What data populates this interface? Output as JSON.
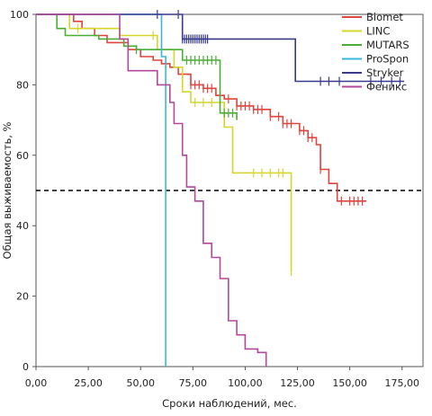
{
  "chart_data": {
    "type": "line",
    "xlabel": "Сроки наблюдений, мес.",
    "ylabel": "Общая выживаемость, %",
    "xlim": [
      0,
      185
    ],
    "ylim": [
      0,
      100
    ],
    "xticks": [
      "0,00",
      "25,00",
      "50,00",
      "75,00",
      "100,00",
      "125,00",
      "150,00",
      "175,00"
    ],
    "xtick_values": [
      0,
      25,
      50,
      75,
      100,
      125,
      150,
      175
    ],
    "yticks": [
      "0",
      "20",
      "40",
      "60",
      "80",
      "100"
    ],
    "ytick_values": [
      0,
      20,
      40,
      60,
      80,
      100
    ],
    "reference_line": {
      "y": 50,
      "style": "dashed",
      "color": "#000000"
    },
    "legend_position": "top-right",
    "series": [
      {
        "name": "Biomet",
        "color": "#e0443e",
        "points": [
          [
            0,
            100
          ],
          [
            18,
            100
          ],
          [
            18,
            98
          ],
          [
            22,
            98
          ],
          [
            22,
            96
          ],
          [
            28,
            96
          ],
          [
            28,
            94
          ],
          [
            34,
            94
          ],
          [
            34,
            92
          ],
          [
            44,
            92
          ],
          [
            44,
            90
          ],
          [
            50,
            90
          ],
          [
            50,
            88
          ],
          [
            56,
            88
          ],
          [
            56,
            87
          ],
          [
            60,
            87
          ],
          [
            60,
            86
          ],
          [
            64,
            86
          ],
          [
            64,
            85
          ],
          [
            68,
            85
          ],
          [
            68,
            83
          ],
          [
            74,
            83
          ],
          [
            74,
            80
          ],
          [
            80,
            80
          ],
          [
            80,
            79
          ],
          [
            86,
            79
          ],
          [
            86,
            77
          ],
          [
            90,
            77
          ],
          [
            90,
            76
          ],
          [
            96,
            76
          ],
          [
            96,
            74
          ],
          [
            104,
            74
          ],
          [
            104,
            73
          ],
          [
            112,
            73
          ],
          [
            112,
            71
          ],
          [
            118,
            71
          ],
          [
            118,
            69
          ],
          [
            126,
            69
          ],
          [
            126,
            67
          ],
          [
            130,
            67
          ],
          [
            130,
            65
          ],
          [
            134,
            65
          ],
          [
            134,
            63
          ],
          [
            136,
            63
          ],
          [
            136,
            56
          ],
          [
            140,
            56
          ],
          [
            140,
            52
          ],
          [
            144,
            52
          ],
          [
            144,
            47
          ],
          [
            158,
            47
          ]
        ],
        "censor": [
          62,
          70,
          74,
          76,
          78,
          80,
          82,
          84,
          88,
          92,
          96,
          98,
          100,
          102,
          104,
          106,
          108,
          112,
          116,
          118,
          120,
          122,
          126,
          128,
          130,
          132,
          136,
          146,
          150,
          152,
          154,
          156
        ]
      },
      {
        "name": "LINC",
        "color": "#d6d62e",
        "points": [
          [
            0,
            100
          ],
          [
            16,
            100
          ],
          [
            16,
            96
          ],
          [
            40,
            96
          ],
          [
            40,
            94
          ],
          [
            58,
            94
          ],
          [
            58,
            90
          ],
          [
            66,
            90
          ],
          [
            66,
            85
          ],
          [
            70,
            85
          ],
          [
            70,
            78
          ],
          [
            74,
            78
          ],
          [
            74,
            75
          ],
          [
            90,
            75
          ],
          [
            90,
            68
          ],
          [
            94,
            68
          ],
          [
            94,
            55
          ],
          [
            120,
            55
          ],
          [
            122,
            55
          ],
          [
            122,
            27
          ]
        ],
        "censor": [
          20,
          56,
          60,
          76,
          80,
          84,
          88,
          104,
          108,
          112,
          116,
          118,
          122
        ]
      },
      {
        "name": "MUTARS",
        "color": "#4aae36",
        "points": [
          [
            0,
            100
          ],
          [
            10,
            100
          ],
          [
            10,
            96
          ],
          [
            14,
            96
          ],
          [
            14,
            94
          ],
          [
            30,
            94
          ],
          [
            30,
            93
          ],
          [
            42,
            93
          ],
          [
            42,
            91
          ],
          [
            48,
            91
          ],
          [
            48,
            90
          ],
          [
            70,
            90
          ],
          [
            70,
            87
          ],
          [
            88,
            87
          ],
          [
            88,
            72
          ],
          [
            96,
            72
          ],
          [
            96,
            70
          ]
        ],
        "censor": [
          48,
          72,
          74,
          76,
          78,
          80,
          82,
          84,
          86,
          90,
          92,
          94
        ]
      },
      {
        "name": "ProSpon",
        "color": "#38b8d8",
        "points": [
          [
            0,
            100
          ],
          [
            60,
            100
          ],
          [
            60,
            88
          ],
          [
            62,
            88
          ],
          [
            62,
            0
          ]
        ],
        "censor": []
      },
      {
        "name": "Stryker",
        "color": "#3a3a8a",
        "points": [
          [
            0,
            100
          ],
          [
            70,
            100
          ],
          [
            70,
            93
          ],
          [
            124,
            93
          ],
          [
            124,
            81
          ],
          [
            176,
            81
          ]
        ],
        "censor": [
          58,
          68,
          70,
          71,
          72,
          73,
          74,
          75,
          76,
          77,
          78,
          79,
          80,
          81,
          82,
          136,
          140,
          145,
          160,
          165,
          170,
          174
        ]
      },
      {
        "name": "Феникс",
        "color": "#b4489a",
        "points": [
          [
            0,
            100
          ],
          [
            40,
            100
          ],
          [
            40,
            93
          ],
          [
            44,
            93
          ],
          [
            44,
            84
          ],
          [
            58,
            84
          ],
          [
            58,
            80
          ],
          [
            64,
            80
          ],
          [
            64,
            75
          ],
          [
            66,
            75
          ],
          [
            66,
            69
          ],
          [
            70,
            69
          ],
          [
            70,
            60
          ],
          [
            72,
            60
          ],
          [
            72,
            51
          ],
          [
            76,
            51
          ],
          [
            76,
            47
          ],
          [
            80,
            47
          ],
          [
            80,
            35
          ],
          [
            84,
            35
          ],
          [
            84,
            31
          ],
          [
            88,
            31
          ],
          [
            88,
            25
          ],
          [
            92,
            25
          ],
          [
            92,
            13
          ],
          [
            96,
            13
          ],
          [
            96,
            9
          ],
          [
            100,
            9
          ],
          [
            100,
            5
          ],
          [
            106,
            5
          ],
          [
            106,
            4
          ],
          [
            110,
            4
          ],
          [
            110,
            0
          ]
        ],
        "censor": []
      }
    ]
  }
}
